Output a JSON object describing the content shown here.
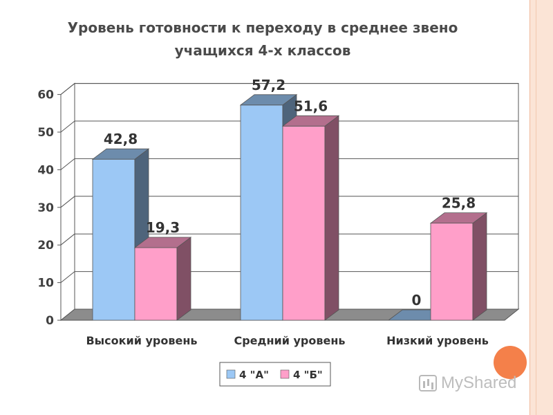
{
  "slide": {
    "title_line1": "Уровень готовности к переходу в среднее звено",
    "title_line2": "учащихся 4-х классов",
    "watermark_text": "MyShared"
  },
  "colors": {
    "series_a": "#9cc8f5",
    "series_b": "#ff9fc9",
    "accent_dot": "#f4804a"
  },
  "chart_data": {
    "type": "bar",
    "title": "Уровень готовности к переходу в среднее звено учащихся 4-х классов",
    "categories": [
      "Высокий уровень",
      "Средний уровень",
      "Низкий уровень"
    ],
    "series": [
      {
        "name": "4 \"А\"",
        "values": [
          42.8,
          57.2,
          0
        ],
        "labels": [
          "42,8",
          "57,2",
          "0"
        ]
      },
      {
        "name": "4 \"Б\"",
        "values": [
          19.3,
          51.6,
          25.8
        ],
        "labels": [
          "19,3",
          "51,6",
          "25,8"
        ]
      }
    ],
    "yticks": [
      0,
      10,
      20,
      30,
      40,
      50,
      60
    ],
    "ylim": [
      0,
      60
    ],
    "grid": true,
    "legend": "bottom",
    "style": "3d-column"
  }
}
